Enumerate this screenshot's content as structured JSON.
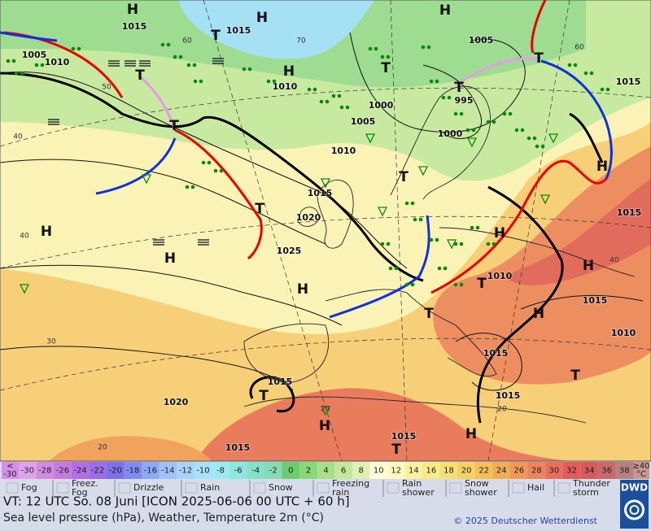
{
  "map": {
    "pressure_labels": [
      "1015",
      "1015",
      "1005",
      "1015",
      "1010",
      "1005",
      "1010",
      "1000",
      "995",
      "1005",
      "1000",
      "1010",
      "1015",
      "1020",
      "1025",
      "1010",
      "1015",
      "1015",
      "1010",
      "1015",
      "1020",
      "1015",
      "1015",
      "1015",
      "1015"
    ],
    "centers": [
      "H",
      "H",
      "H",
      "H",
      "H",
      "H",
      "H",
      "H",
      "H",
      "H",
      "H",
      "H",
      "H",
      "T",
      "T",
      "T",
      "T",
      "T",
      "T",
      "T",
      "T",
      "T",
      "T",
      "T",
      "T",
      "T"
    ],
    "temperature_labels": [
      "60",
      "60",
      "70",
      "50",
      "40",
      "40",
      "30",
      "20",
      "20",
      "40",
      "20"
    ]
  },
  "color_scale": {
    "low": {
      "lines": [
        "<",
        "-30"
      ],
      "color": "#d68ee8"
    },
    "items": [
      {
        "label": "-30",
        "color": "#e0a2ea"
      },
      {
        "label": "-28",
        "color": "#d48ce2"
      },
      {
        "label": "-26",
        "color": "#c47cdc"
      },
      {
        "label": "-24",
        "color": "#b26ee2"
      },
      {
        "label": "-22",
        "color": "#9c6ce6"
      },
      {
        "label": "-20",
        "color": "#7c70ec"
      },
      {
        "label": "-18",
        "color": "#808cf2"
      },
      {
        "label": "-16",
        "color": "#8ea8f6"
      },
      {
        "label": "-14",
        "color": "#9ec2fa"
      },
      {
        "label": "-12",
        "color": "#a8d4fc"
      },
      {
        "label": "-10",
        "color": "#a6e2fb"
      },
      {
        "label": "-8",
        "color": "#9eeaf2"
      },
      {
        "label": "-6",
        "color": "#8ee6de"
      },
      {
        "label": "-4",
        "color": "#86e0c8"
      },
      {
        "label": "-2",
        "color": "#88dab2"
      },
      {
        "label": "0",
        "color": "#6ccc70"
      },
      {
        "label": "2",
        "color": "#88d878"
      },
      {
        "label": "4",
        "color": "#a8e08a"
      },
      {
        "label": "6",
        "color": "#c4e89a"
      },
      {
        "label": "8",
        "color": "#dff0b2"
      },
      {
        "label": "10",
        "color": "#fbfbd8"
      },
      {
        "label": "12",
        "color": "#fff8c0"
      },
      {
        "label": "14",
        "color": "#fbf2a0"
      },
      {
        "label": "16",
        "color": "#f8ec88"
      },
      {
        "label": "18",
        "color": "#f6e072"
      },
      {
        "label": "20",
        "color": "#f5d264"
      },
      {
        "label": "22",
        "color": "#f4c05a"
      },
      {
        "label": "24",
        "color": "#f2ac56"
      },
      {
        "label": "26",
        "color": "#f09858"
      },
      {
        "label": "28",
        "color": "#ee845c"
      },
      {
        "label": "30",
        "color": "#ea6e5e"
      },
      {
        "label": "32",
        "color": "#e25c5c"
      },
      {
        "label": "34",
        "color": "#d85a5a"
      },
      {
        "label": "36",
        "color": "#c86a6a"
      },
      {
        "label": "38",
        "color": "#b88080"
      }
    ],
    "high": {
      "lines": [
        "≥40",
        "°C"
      ],
      "color": "#c89890"
    }
  },
  "weather_legend": [
    {
      "lines": [
        "Fog"
      ]
    },
    {
      "lines": [
        "Freez.",
        "Fog"
      ]
    },
    {
      "lines": [
        "Drizzle"
      ]
    },
    {
      "lines": [
        "Rain"
      ]
    },
    {
      "lines": [
        "Snow"
      ]
    },
    {
      "lines": [
        "Freezing",
        "rain"
      ]
    },
    {
      "lines": [
        "Rain",
        "shower"
      ]
    },
    {
      "lines": [
        "Snow",
        "shower"
      ]
    },
    {
      "lines": [
        "Hail"
      ]
    },
    {
      "lines": [
        "Thunder",
        "storm"
      ]
    }
  ],
  "footer": {
    "valid_time": "VT: 12 UTC So.  08 Juni [ICON 2025-06-06  00 UTC + 60 h]",
    "description": "Sea level pressure (hPa), Weather, Temperature 2m (°C)",
    "copyright": "© 2025 Deutscher Wetterdienst",
    "logo": "DWD"
  }
}
